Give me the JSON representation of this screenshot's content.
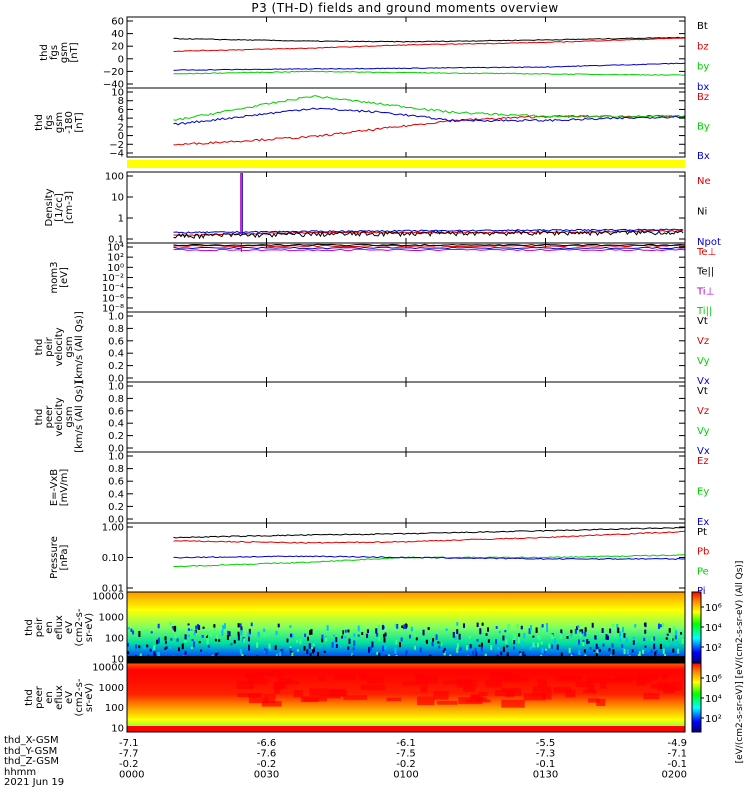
{
  "title": "P3 (TH-D) fields and ground moments overview",
  "colors": {
    "black": "#000000",
    "red": "#e00000",
    "green": "#00d000",
    "blue": "#0000d0",
    "magenta": "#c000c0",
    "yellow": "#ffff00"
  },
  "panels": [
    {
      "ylabel_lines": [
        "thd",
        "fgs",
        "gsm",
        "[nT]"
      ],
      "yticks": [
        "60",
        "40",
        "20",
        "0",
        "−20",
        "−40"
      ],
      "legend": [
        {
          "text": "Bt",
          "color": "black"
        },
        {
          "text": "bz",
          "color": "red"
        },
        {
          "text": "by",
          "color": "green"
        },
        {
          "text": "bx",
          "color": "blue"
        }
      ]
    },
    {
      "ylabel_lines": [
        "thd",
        "fgs",
        "gsm",
        "-180",
        "[nT]"
      ],
      "yticks": [
        "10",
        "8",
        "6",
        "4",
        "2",
        "0",
        "−2",
        "−4"
      ],
      "legend": [
        {
          "text": "Bz",
          "color": "red"
        },
        {
          "text": "By",
          "color": "green"
        },
        {
          "text": "Bx",
          "color": "blue"
        }
      ]
    },
    {
      "ylabel_lines": [
        "Density",
        "[1/cc]",
        "[cm-3]"
      ],
      "yticks": [
        "100",
        "10",
        "1",
        "0.1"
      ],
      "legend": [
        {
          "text": "Ne",
          "color": "red"
        },
        {
          "text": "Ni",
          "color": "black"
        },
        {
          "text": "Npot",
          "color": "blue"
        }
      ]
    },
    {
      "ylabel_lines": [
        "mom3",
        "[eV]"
      ],
      "yticks": [
        "10⁴",
        "10²",
        "10⁰",
        "10⁻²",
        "10⁻⁴",
        "10⁻⁶",
        "10⁻⁸"
      ],
      "legend": [
        {
          "text": "Te⊥",
          "color": "red"
        },
        {
          "text": "Te||",
          "color": "black"
        },
        {
          "text": "Ti⊥",
          "color": "magenta"
        },
        {
          "text": "Ti||",
          "color": "green"
        }
      ]
    },
    {
      "ylabel_lines": [
        "thd",
        "peir",
        "velocity",
        "gsm",
        "[km/s (All Qs)]"
      ],
      "yticks": [
        "1.0",
        "0.8",
        "0.6",
        "0.4",
        "0.2",
        "0.0"
      ],
      "legend": [
        {
          "text": "Vt",
          "color": "black"
        },
        {
          "text": "Vz",
          "color": "red"
        },
        {
          "text": "Vy",
          "color": "green"
        },
        {
          "text": "Vx",
          "color": "blue"
        }
      ]
    },
    {
      "ylabel_lines": [
        "thd",
        "peer",
        "velocity",
        "gsm",
        "[km/s (All Qs)]"
      ],
      "yticks": [
        "1.0",
        "0.8",
        "0.6",
        "0.4",
        "0.2",
        "0.0"
      ],
      "legend": [
        {
          "text": "Vt",
          "color": "black"
        },
        {
          "text": "Vz",
          "color": "red"
        },
        {
          "text": "Vy",
          "color": "green"
        },
        {
          "text": "Vx",
          "color": "blue"
        }
      ]
    },
    {
      "ylabel_lines": [
        "E=-VxB",
        "[mV/m]"
      ],
      "yticks": [
        "1.0",
        "0.8",
        "0.6",
        "0.4",
        "0.2",
        "0.0"
      ],
      "legend": [
        {
          "text": "Ez",
          "color": "red"
        },
        {
          "text": "Ey",
          "color": "green"
        },
        {
          "text": "Ex",
          "color": "blue"
        }
      ]
    },
    {
      "ylabel_lines": [
        "Pressure",
        "[nPa]"
      ],
      "yticks": [
        "1.00",
        "0.10",
        "0.01"
      ],
      "legend": [
        {
          "text": "Pt",
          "color": "black"
        },
        {
          "text": "Pb",
          "color": "red"
        },
        {
          "text": "Pe",
          "color": "green"
        },
        {
          "text": "Pi",
          "color": "blue"
        }
      ]
    },
    {
      "ylabel_lines": [
        "thd",
        "peir",
        "en",
        "eflux",
        "eV",
        "(cm2-s-",
        "sr-eV)"
      ],
      "yticks": [
        "10000",
        "1000",
        "100",
        "10"
      ],
      "legend": []
    },
    {
      "ylabel_lines": [
        "thd",
        "peer",
        "en",
        "eflux",
        "eV",
        "(cm2-s-",
        "sr-eV)"
      ],
      "yticks": [
        "10000",
        "1000",
        "100",
        "10"
      ],
      "legend": []
    }
  ],
  "colorbar": {
    "ticks": [
      "10⁶",
      "10⁴",
      "10²"
    ],
    "label": "[eV/(cm2-s-sr-eV)] [eV/(cm2-s-sr-eV) (All Qs)]"
  },
  "xaxis": {
    "row_labels": [
      "thd_X-GSM",
      "thd_Y-GSM",
      "thd_Z-GSM",
      "hhmm",
      "2021 Jun 19"
    ],
    "ticks": [
      {
        "X": "-7.1",
        "Y": "-7.7",
        "Z": "-0.2",
        "hhmm": "0000"
      },
      {
        "X": "-6.6",
        "Y": "-7.6",
        "Z": "-0.2",
        "hhmm": "0030"
      },
      {
        "X": "-6.1",
        "Y": "-7.5",
        "Z": "-0.2",
        "hhmm": "0100"
      },
      {
        "X": "-5.5",
        "Y": "-7.3",
        "Z": "-0.1",
        "hhmm": "0130"
      },
      {
        "X": "-4.9",
        "Y": "-7.1",
        "Z": "-0.1",
        "hhmm": "0200"
      }
    ]
  },
  "chart_data": [
    {
      "type": "line",
      "ylabel": "thd fgs gsm [nT]",
      "ylim": [
        -40,
        60
      ],
      "x_minutes": [
        10,
        40,
        60,
        90,
        120
      ],
      "series": [
        {
          "name": "Bt",
          "values": [
            32,
            28,
            27,
            30,
            34
          ]
        },
        {
          "name": "bz",
          "values": [
            12,
            17,
            22,
            26,
            33
          ]
        },
        {
          "name": "by",
          "values": [
            -24,
            -20,
            -22,
            -24,
            -26
          ]
        },
        {
          "name": "bx",
          "values": [
            -18,
            -16,
            -15,
            -13,
            -7
          ]
        }
      ]
    },
    {
      "type": "line",
      "ylabel": "thd fgs gsm -180 [nT]",
      "ylim": [
        -5,
        10
      ],
      "x_minutes": [
        10,
        25,
        40,
        55,
        70,
        90,
        120
      ],
      "series": [
        {
          "name": "Bz",
          "values": [
            -3,
            -2,
            -1,
            1,
            3,
            4,
            4
          ]
        },
        {
          "name": "By",
          "values": [
            3,
            6,
            9,
            7,
            5,
            4,
            4
          ]
        },
        {
          "name": "Bx",
          "values": [
            2,
            4,
            6,
            5,
            3,
            3,
            4
          ]
        }
      ]
    },
    {
      "type": "line",
      "ylabel": "Density [1/cc] [cm-3]",
      "ylim": [
        0.1,
        100
      ],
      "x_minutes": [
        10,
        40,
        70,
        100,
        120
      ],
      "series": [
        {
          "name": "Ne",
          "values": [
            0.15,
            0.2,
            0.2,
            0.22,
            0.25
          ]
        },
        {
          "name": "Ni",
          "values": [
            0.14,
            0.17,
            0.19,
            0.2,
            0.21
          ]
        },
        {
          "name": "Npot",
          "values": [
            0.2,
            0.23,
            0.25,
            0.27,
            0.28
          ]
        }
      ]
    },
    {
      "type": "line",
      "ylabel": "Pressure [nPa]",
      "ylim": [
        0.01,
        1
      ],
      "x_minutes": [
        10,
        40,
        60,
        90,
        120
      ],
      "series": [
        {
          "name": "Pt",
          "values": [
            0.45,
            0.55,
            0.6,
            0.75,
            0.95
          ]
        },
        {
          "name": "Pb",
          "values": [
            0.35,
            0.3,
            0.33,
            0.45,
            0.7
          ]
        },
        {
          "name": "Pe",
          "values": [
            0.05,
            0.07,
            0.1,
            0.1,
            0.12
          ]
        },
        {
          "name": "Pi",
          "values": [
            0.1,
            0.11,
            0.1,
            0.09,
            0.09
          ]
        }
      ]
    }
  ]
}
